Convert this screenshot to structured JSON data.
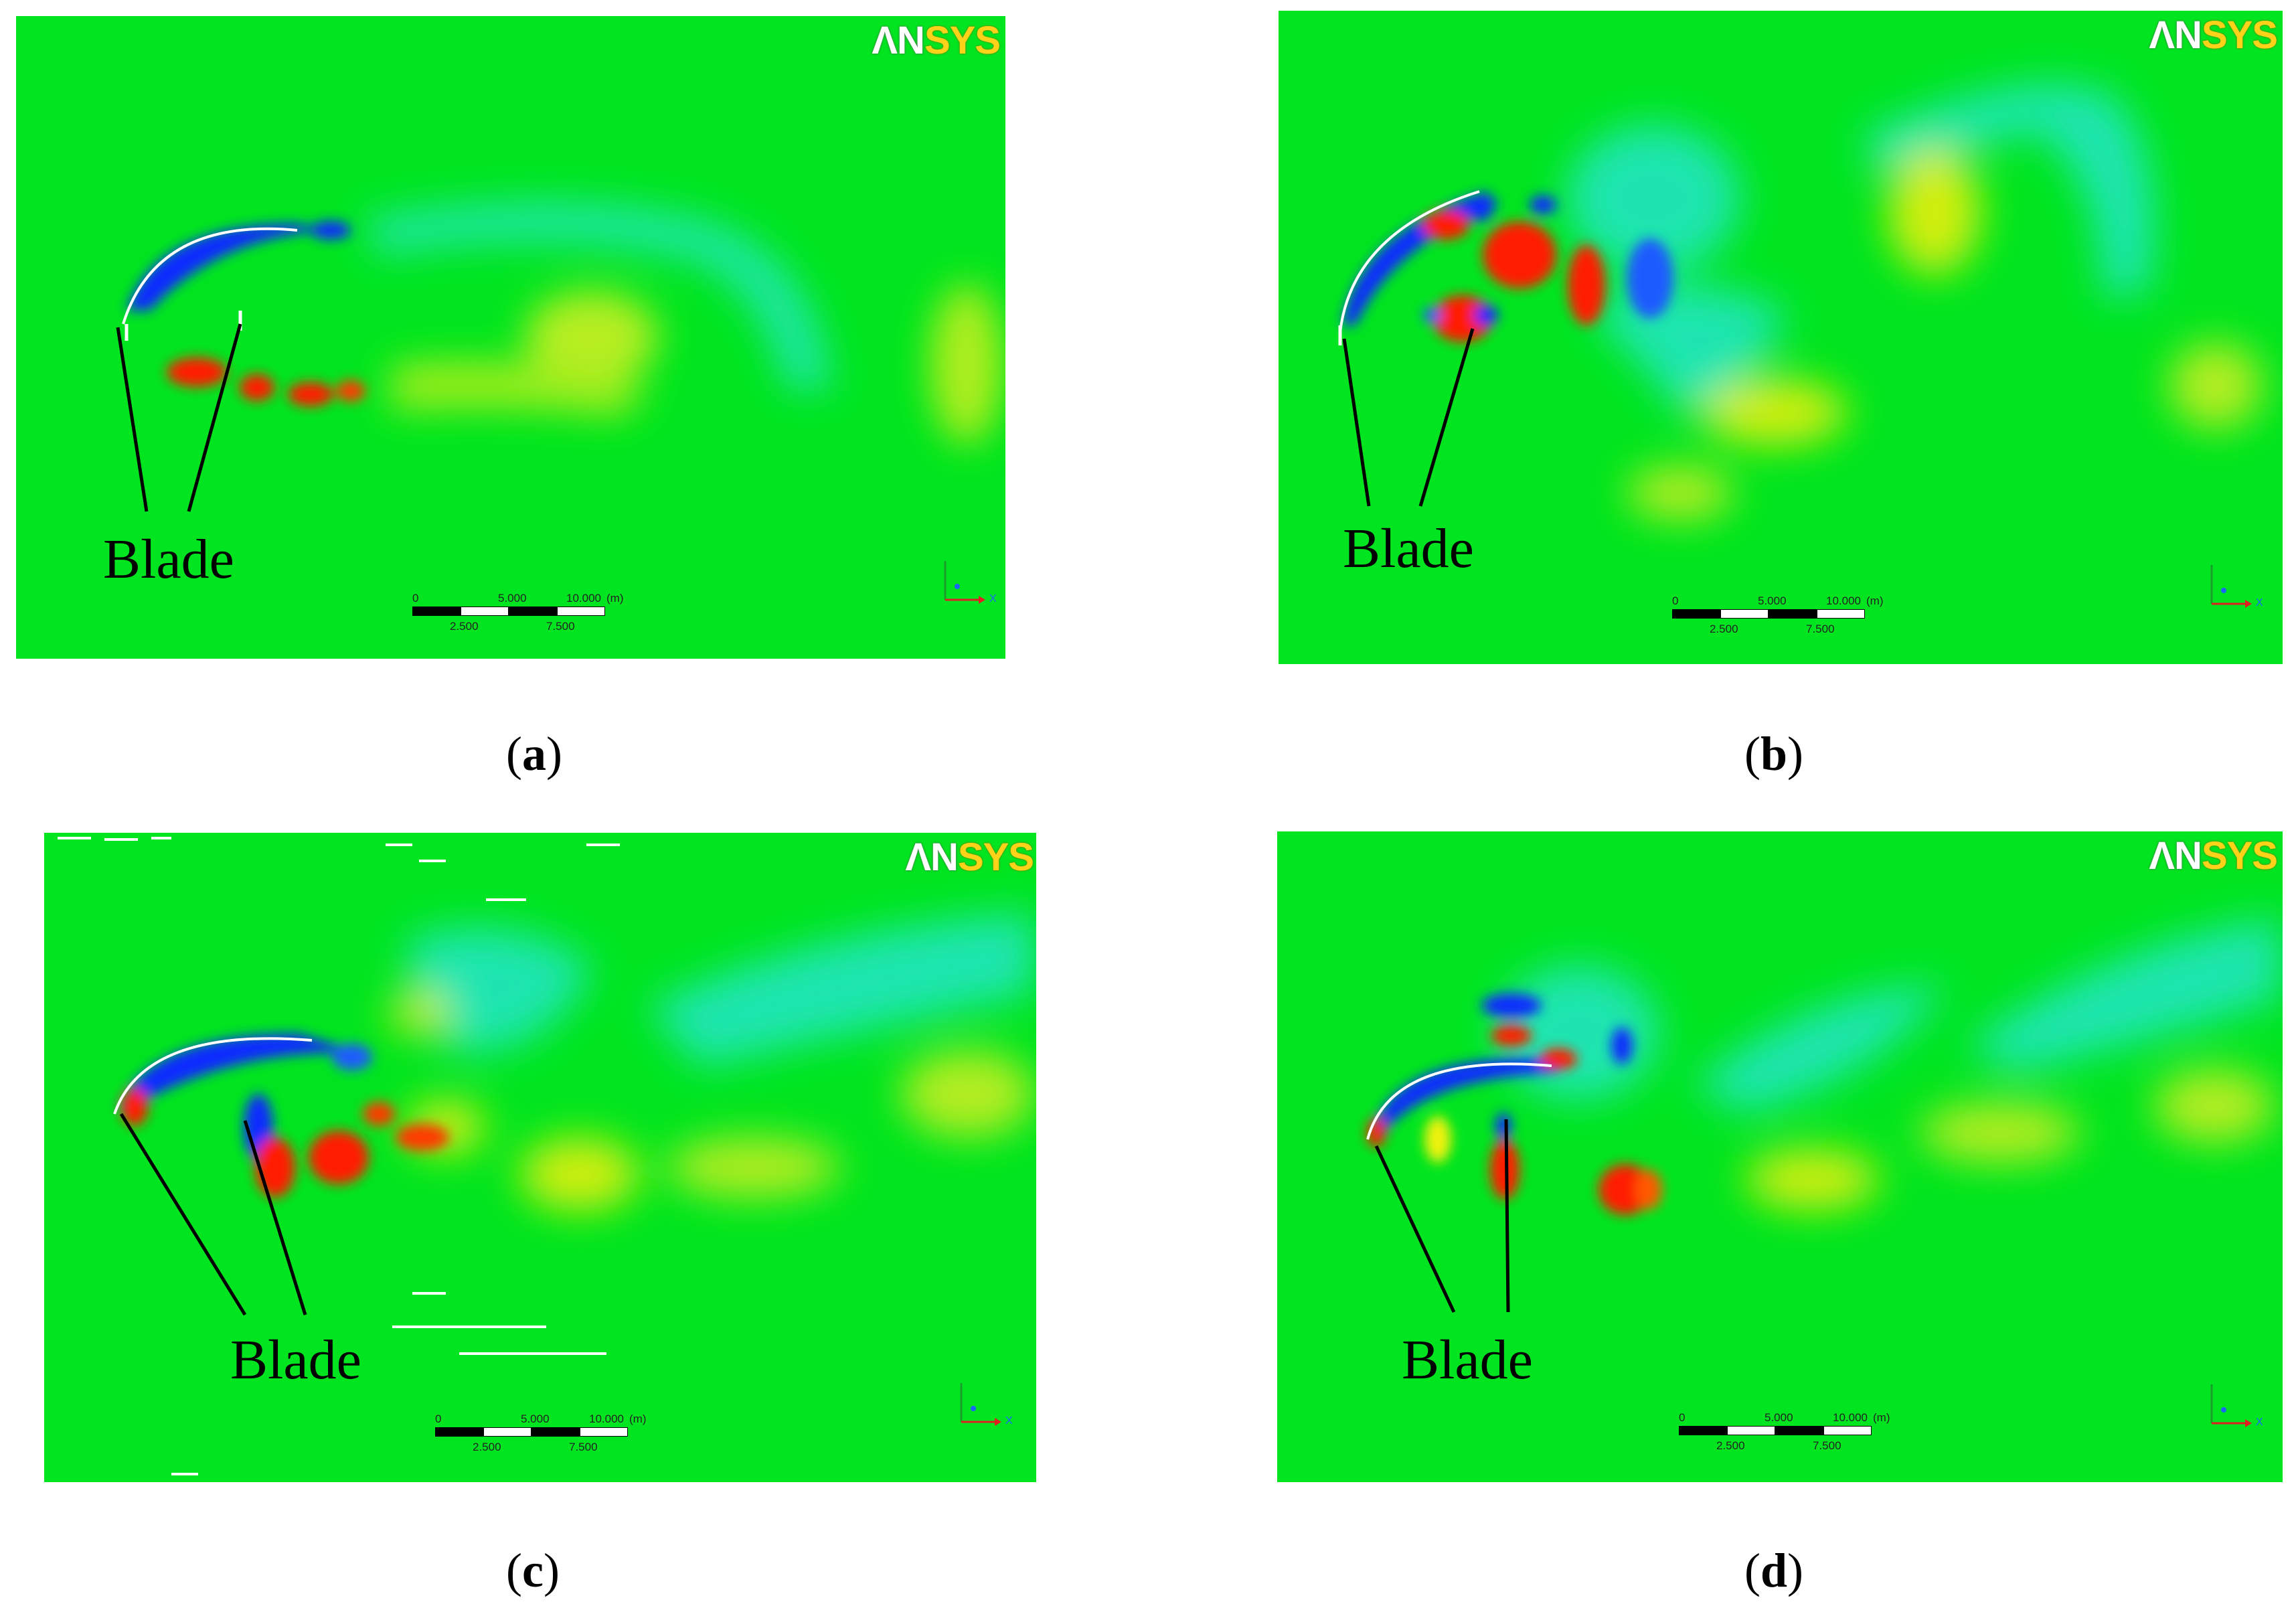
{
  "logo": {
    "part_a": "ΛN",
    "part_b": "SYS"
  },
  "blade_label": "Blade",
  "scale_bar": {
    "top_ticks": [
      "0",
      "5.000",
      "10.000"
    ],
    "unit": "(m)",
    "bottom_ticks": [
      "2.500",
      "7.500"
    ]
  },
  "axis": {
    "x": "X",
    "y": "Y"
  },
  "panels": [
    {
      "id": "a",
      "caption_open": "(",
      "caption_letter": "a",
      "caption_close": ")"
    },
    {
      "id": "b",
      "caption_open": "(",
      "caption_letter": "b",
      "caption_close": ")"
    },
    {
      "id": "c",
      "caption_open": "(",
      "caption_letter": "c",
      "caption_close": ")"
    },
    {
      "id": "d",
      "caption_open": "(",
      "caption_letter": "d",
      "caption_close": ")"
    }
  ],
  "colors": {
    "background": "#00e51f",
    "positive": "#ff1a00",
    "negative": "#0a2cff",
    "weak_positive": "#f2f20a",
    "weak_negative": "#00e5c8"
  }
}
